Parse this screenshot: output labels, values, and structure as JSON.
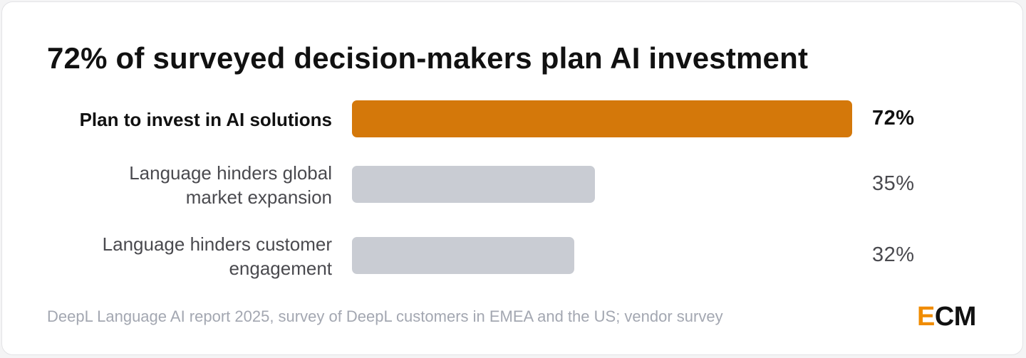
{
  "title": "72% of surveyed decision-makers plan AI investment",
  "source": "DeepL Language AI report 2025, survey of DeepL customers in EMEA and the US; vendor survey",
  "logo": {
    "first": "E",
    "rest": "CM",
    "accent_color": "#f08c00",
    "text_color": "#111111"
  },
  "colors": {
    "highlight": "#d4780a",
    "muted": "#c9ccd3"
  },
  "chart_data": {
    "type": "bar",
    "orientation": "horizontal",
    "categories": [
      "Plan to invest in AI solutions",
      "Language hinders global market expansion",
      "Language hinders customer engagement"
    ],
    "category_lines": [
      [
        "Plan to invest in AI solutions"
      ],
      [
        "Language hinders global",
        "market expansion"
      ],
      [
        "Language hinders customer",
        "engagement"
      ]
    ],
    "values": [
      72,
      35,
      32
    ],
    "value_labels": [
      "72%",
      "35%",
      "32%"
    ],
    "highlight_index": 0,
    "xlim": [
      0,
      100
    ],
    "grid": false,
    "legend": "none"
  }
}
